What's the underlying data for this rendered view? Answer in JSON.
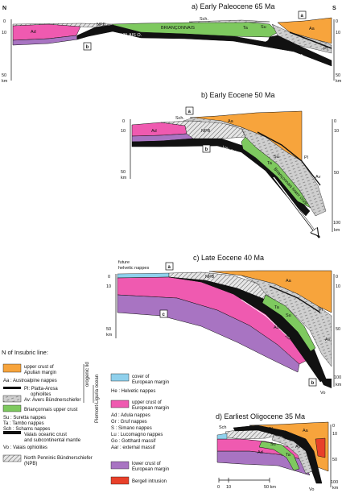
{
  "colors": {
    "orange": "#f7a43c",
    "pink": "#ef5ab0",
    "green": "#7ec95f",
    "black": "#111111",
    "grey": "#c9c9c9",
    "purple": "#a874c2",
    "lightblue": "#8fd0ec",
    "red": "#e8402a"
  },
  "panel_a": {
    "title": "a) Early Paleocene    65 Ma",
    "north": "N",
    "south": "S",
    "ticks_left": [
      "0",
      "10",
      "50",
      "km"
    ],
    "ticks_right": [
      "0",
      "10",
      "50",
      "km"
    ],
    "box_a": "a",
    "box_b": "b",
    "labels": {
      "ad": "Ad",
      "npb": "NPB",
      "sch": "Sch.",
      "brianconnais": "BRIANÇONNAIS",
      "ta": "Ta",
      "su": "Su",
      "aa": "Aa",
      "pl": "Pl",
      "valais": "VALAIS O.",
      "piem": "PIEM.-LIG. O."
    }
  },
  "panel_b": {
    "title": "b) Early Eocene    50 Ma",
    "ticks_left": [
      "0",
      "10",
      "50",
      "km"
    ],
    "ticks_right": [
      "0",
      "10",
      "50",
      "100",
      "km"
    ],
    "box_a": "a",
    "box_b": "b",
    "labels": {
      "sch": "Sch.",
      "aa": "Aa",
      "npb": "NPB",
      "ad": "Ad",
      "valais": "VALAIS O.",
      "ta": "Ta",
      "su": "Su",
      "pl": "Pl",
      "av": "Av",
      "brianconnais_crust": "Briançonnais lower crust"
    }
  },
  "panel_c": {
    "title": "c) Late Eocene    40 Ma",
    "future": "future",
    "helvetic": "helvetic nappes",
    "ticks_left": [
      "0",
      "10",
      "50",
      "km"
    ],
    "ticks_right": [
      "0",
      "10",
      "50",
      "100",
      "km"
    ],
    "box_a": "a",
    "box_b": "b",
    "box_c": "c",
    "labels": {
      "aa": "Aa",
      "npb": "NPB",
      "pl": "Pl",
      "av": "Av",
      "su": "Su",
      "ta": "Ta",
      "ad": "Ad",
      "ad_gr": "Ad+Gr",
      "vo": "Vo"
    }
  },
  "panel_d": {
    "title": "d) Earliest Oligocene    35 Ma",
    "ticks": [
      "0",
      "10",
      "50",
      "100",
      "km"
    ],
    "scale": [
      "0",
      "10",
      "50 km"
    ],
    "labels": {
      "sch": "Sch",
      "pl": "Pl",
      "aa": "Aa",
      "av": "Av",
      "su": "Su",
      "ad": "Ad",
      "ta": "Ta",
      "vo": "Vo"
    }
  },
  "legend": {
    "heading": "N of Insubric line:",
    "group_orogenic": "orogenic lid",
    "group_piemont": "Piemont-Liguria ocean",
    "left": [
      {
        "key": "orange",
        "text": "upper crust of",
        "text2": "Apulian margin"
      },
      {
        "key": "none",
        "text": "Aa  : Austroalpine nappes"
      },
      {
        "key": "black",
        "text": "Pl: Platta-Arosa",
        "text2": "ophiolites"
      },
      {
        "key": "grey",
        "text": "Av: Avers Bündnerschiefer"
      },
      {
        "key": "green",
        "text": "Briançonnais upper crust"
      },
      {
        "key": "none",
        "text": "Su  : Suretta nappes"
      },
      {
        "key": "none",
        "text": "Ta  : Tambo nappes"
      },
      {
        "key": "none",
        "text": "Sch : Schams nappes"
      },
      {
        "key": "black",
        "text": "Valais oceanic crust",
        "text2": "and subcontinental mantle"
      },
      {
        "key": "none",
        "text": "Vo  : Valais ophiolites"
      },
      {
        "key": "hatch",
        "text": "North Penninic Bündnerschiefer",
        "text2": "(NPB)"
      }
    ],
    "right": [
      {
        "key": "lightblue",
        "text": "cover of",
        "text2": "European margin"
      },
      {
        "key": "none",
        "text": "He  : Helvetic nappes"
      },
      {
        "key": "pink",
        "text": "upper crust of",
        "text2": "European margin"
      },
      {
        "key": "none",
        "text": "Ad  : Adula nappes"
      },
      {
        "key": "none",
        "text": "Gr  : Gruf nappes"
      },
      {
        "key": "none",
        "text": "S    : Simano nappes"
      },
      {
        "key": "none",
        "text": "Lu  : Lucomagno nappes"
      },
      {
        "key": "none",
        "text": "Go  : Gotthard massif"
      },
      {
        "key": "none",
        "text": "Aar : external massif"
      },
      {
        "key": "purple",
        "text": "lower crust of",
        "text2": "European margin"
      },
      {
        "key": "red",
        "text": "Bergell intrusion"
      }
    ]
  }
}
